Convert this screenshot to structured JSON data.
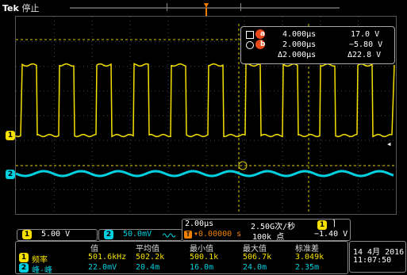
{
  "header": {
    "brand": "Tek",
    "status": "停止"
  },
  "trigger_marker": "T",
  "cursor_markers": [
    "b",
    "a"
  ],
  "cursors": {
    "row1": {
      "label": "a",
      "time": "4.000µs",
      "volt": "17.0 V"
    },
    "row2": {
      "label": "b",
      "time": "2.000µs",
      "volt": "−5.80 V"
    },
    "row3": {
      "time": "Δ2.000µs",
      "volt": "Δ22.8 V"
    }
  },
  "channels": {
    "ch1": {
      "id": "1",
      "scale": "5.00 V",
      "color": "#f5e000"
    },
    "ch2": {
      "id": "2",
      "scale": "50.0mV",
      "suffix": "\b",
      "color": "#00d0e0"
    }
  },
  "timebase": {
    "scale": "2.00µs",
    "delay": "▾0.00000 s",
    "rate": "2.50G次/秒",
    "points": "100k 点",
    "trig_ch": "1",
    "trig_slope": "⌒",
    "trig_level": "−1.40 V"
  },
  "measurements": {
    "headers": [
      "值",
      "平均值",
      "最小值",
      "最大值",
      "标准差"
    ],
    "rows": [
      {
        "ch": "1",
        "name": "频率",
        "values": [
          "501.6kHz",
          "502.2k",
          "500.1k",
          "506.7k",
          "3.049k"
        ]
      },
      {
        "ch": "2",
        "name": "峰-峰",
        "values": [
          "22.0mV",
          "20.4m",
          "16.0m",
          "24.0m",
          "2.35m"
        ]
      }
    ]
  },
  "datetime": {
    "date": "14 4月 2016",
    "time": "11:07:50"
  },
  "level_markers": {
    "ch1": "1",
    "ch2": "2"
  }
}
